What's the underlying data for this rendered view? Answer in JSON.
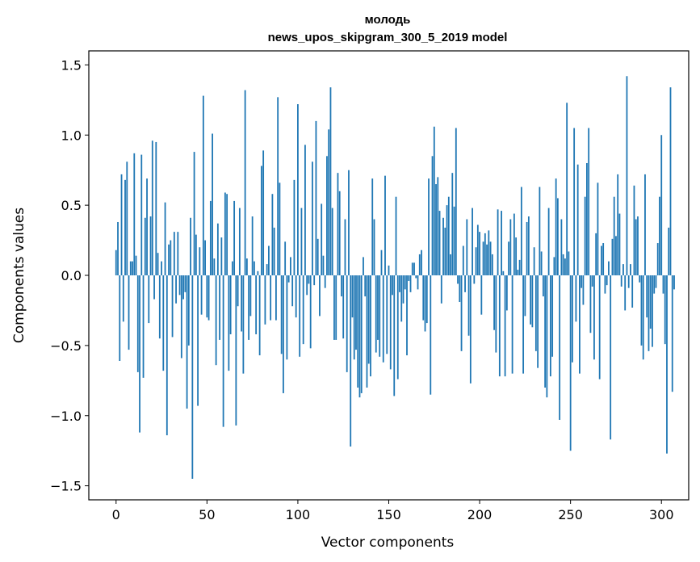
{
  "chart_data": {
    "type": "bar",
    "title": "молодь",
    "subtitle": "news_upos_skipgram_300_5_2019 model",
    "xlabel": "Vector components",
    "ylabel": "Components values",
    "xlim": [
      -15,
      315
    ],
    "ylim": [
      -1.6,
      1.6
    ],
    "xticks": [
      0,
      50,
      100,
      150,
      200,
      250,
      300
    ],
    "xtick_labels": [
      "0",
      "50",
      "100",
      "150",
      "200",
      "250",
      "300"
    ],
    "yticks": [
      -1.5,
      -1.0,
      -0.5,
      0.0,
      0.5,
      1.0,
      1.5
    ],
    "ytick_labels": [
      "−1.5",
      "−1.0",
      "−0.5",
      "0.0",
      "0.5",
      "1.0",
      "1.5"
    ],
    "bar_color": "#1f77b4",
    "x_start": 0,
    "values": [
      0.18,
      0.38,
      -0.61,
      0.72,
      -0.33,
      0.68,
      0.81,
      -0.53,
      0.1,
      0.1,
      0.87,
      0.14,
      -0.69,
      -1.12,
      0.86,
      -0.73,
      0.41,
      0.69,
      -0.34,
      0.42,
      0.96,
      -0.17,
      0.95,
      0.16,
      -0.45,
      0.1,
      -0.68,
      0.52,
      -1.14,
      0.22,
      0.25,
      -0.44,
      0.31,
      -0.2,
      0.31,
      -0.14,
      -0.59,
      -0.17,
      -0.12,
      -0.95,
      -0.5,
      0.41,
      -1.45,
      0.88,
      0.29,
      -0.93,
      0.2,
      -0.28,
      1.28,
      0.25,
      -0.3,
      -0.32,
      0.53,
      1.01,
      0.12,
      -0.64,
      0.37,
      -0.46,
      0.27,
      -1.08,
      0.59,
      0.58,
      -0.68,
      -0.42,
      0.1,
      0.53,
      -1.07,
      -0.22,
      0.48,
      -0.4,
      -0.7,
      1.32,
      0.12,
      -0.46,
      -0.29,
      0.42,
      0.1,
      -0.42,
      0.03,
      -0.57,
      0.78,
      0.89,
      -0.35,
      0.08,
      0.21,
      -0.32,
      0.58,
      0.34,
      -0.32,
      1.27,
      0.66,
      -0.56,
      -0.84,
      0.24,
      -0.6,
      -0.05,
      0.13,
      -0.22,
      0.68,
      -0.3,
      1.22,
      -0.58,
      0.48,
      -0.49,
      0.93,
      -0.14,
      -0.06,
      -0.52,
      0.81,
      -0.07,
      1.1,
      0.26,
      -0.29,
      0.51,
      0.14,
      -0.09,
      0.85,
      1.04,
      1.34,
      0.48,
      -0.46,
      -0.46,
      0.73,
      0.6,
      -0.15,
      -0.45,
      0.4,
      -0.69,
      0.75,
      -1.22,
      -0.3,
      -0.6,
      -0.53,
      -0.8,
      -0.87,
      -0.84,
      0.13,
      -0.15,
      -0.8,
      -0.63,
      -0.72,
      0.69,
      0.4,
      -0.55,
      -0.46,
      -0.58,
      0.18,
      -0.62,
      0.71,
      -0.56,
      0.07,
      -0.67,
      -0.14,
      -0.86,
      0.56,
      -0.74,
      -0.12,
      -0.33,
      -0.2,
      -0.1,
      -0.57,
      -0.04,
      -0.12,
      0.09,
      0.09,
      -0.02,
      -0.1,
      0.15,
      0.18,
      -0.32,
      -0.4,
      -0.34,
      0.69,
      -0.85,
      0.85,
      1.06,
      0.65,
      0.7,
      0.46,
      -0.2,
      0.41,
      0.34,
      0.5,
      0.56,
      0.15,
      0.73,
      0.49,
      1.05,
      -0.06,
      -0.19,
      -0.54,
      0.21,
      -0.12,
      0.4,
      -0.43,
      -0.77,
      0.48,
      -0.06,
      0.2,
      0.36,
      0.31,
      -0.28,
      0.24,
      0.3,
      0.22,
      0.32,
      0.24,
      0.15,
      -0.39,
      -0.55,
      0.47,
      -0.72,
      0.46,
      0.03,
      -0.72,
      -0.25,
      0.24,
      0.4,
      -0.7,
      0.44,
      0.27,
      0.04,
      0.11,
      0.63,
      -0.7,
      -0.29,
      0.38,
      0.42,
      -0.35,
      -0.37,
      0.2,
      -0.54,
      -0.66,
      0.63,
      0.17,
      -0.15,
      -0.8,
      -0.87,
      0.48,
      -0.72,
      -0.58,
      0.13,
      0.69,
      0.55,
      -1.03,
      0.4,
      0.15,
      0.12,
      1.23,
      0.17,
      -1.25,
      -0.62,
      1.05,
      -0.33,
      0.79,
      -0.7,
      -0.09,
      -0.21,
      0.56,
      0.8,
      1.05,
      -0.41,
      -0.08,
      -0.6,
      0.3,
      0.66,
      -0.74,
      0.21,
      0.23,
      -0.13,
      -0.07,
      0.1,
      -1.17,
      0.26,
      0.56,
      0.28,
      0.72,
      0.44,
      -0.08,
      0.08,
      -0.25,
      1.42,
      -0.09,
      0.08,
      -0.23,
      0.64,
      0.4,
      0.42,
      -0.05,
      -0.5,
      -0.6,
      0.72,
      -0.3,
      -0.54,
      -0.38,
      -0.51,
      -0.13,
      -0.09,
      0.23,
      0.56,
      1.0,
      -0.13,
      -0.49,
      -1.27,
      0.34,
      1.34,
      -0.83,
      -0.1
    ]
  }
}
